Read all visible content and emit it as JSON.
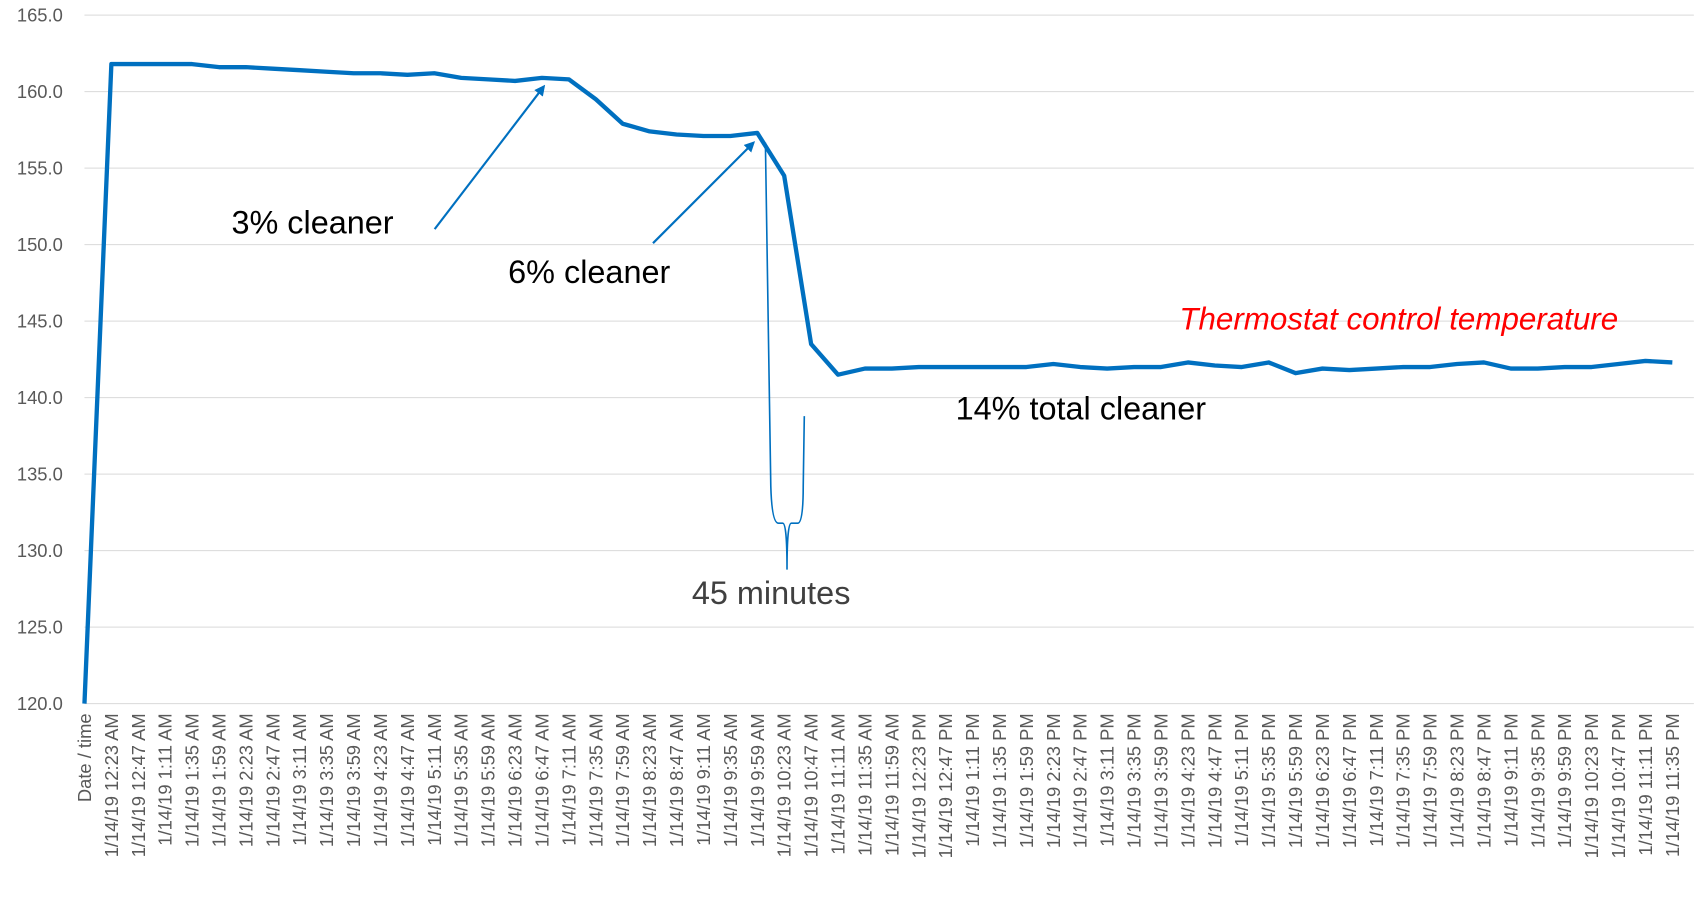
{
  "chart_data": {
    "type": "line",
    "categories": [
      "Date / time",
      "1/14/19 12:23 AM",
      "1/14/19 12:47 AM",
      "1/14/19 1:11 AM",
      "1/14/19 1:35 AM",
      "1/14/19 1:59 AM",
      "1/14/19 2:23 AM",
      "1/14/19 2:47 AM",
      "1/14/19 3:11 AM",
      "1/14/19 3:35 AM",
      "1/14/19 3:59 AM",
      "1/14/19 4:23 AM",
      "1/14/19 4:47 AM",
      "1/14/19 5:11 AM",
      "1/14/19 5:35 AM",
      "1/14/19 5:59 AM",
      "1/14/19 6:23 AM",
      "1/14/19 6:47 AM",
      "1/14/19 7:11 AM",
      "1/14/19 7:35 AM",
      "1/14/19 7:59 AM",
      "1/14/19 8:23 AM",
      "1/14/19 8:47 AM",
      "1/14/19 9:11 AM",
      "1/14/19 9:35 AM",
      "1/14/19 9:59 AM",
      "1/14/19 10:23 AM",
      "1/14/19 10:47 AM",
      "1/14/19 11:11 AM",
      "1/14/19 11:35 AM",
      "1/14/19 11:59 AM",
      "1/14/19 12:23 PM",
      "1/14/19 12:47 PM",
      "1/14/19 1:11 PM",
      "1/14/19 1:35 PM",
      "1/14/19 1:59 PM",
      "1/14/19 2:23 PM",
      "1/14/19 2:47 PM",
      "1/14/19 3:11 PM",
      "1/14/19 3:35 PM",
      "1/14/19 3:59 PM",
      "1/14/19 4:23 PM",
      "1/14/19 4:47 PM",
      "1/14/19 5:11 PM",
      "1/14/19 5:35 PM",
      "1/14/19 5:59 PM",
      "1/14/19 6:23 PM",
      "1/14/19 6:47 PM",
      "1/14/19 7:11 PM",
      "1/14/19 7:35 PM",
      "1/14/19 7:59 PM",
      "1/14/19 8:23 PM",
      "1/14/19 8:47 PM",
      "1/14/19 9:11 PM",
      "1/14/19 9:35 PM",
      "1/14/19 9:59 PM",
      "1/14/19 10:23 PM",
      "1/14/19 10:47 PM",
      "1/14/19 11:11 PM",
      "1/14/19 11:35 PM"
    ],
    "series": [
      {
        "color": "#0070c0",
        "values": [
          120,
          161.8,
          161.8,
          161.8,
          161.8,
          161.6,
          161.6,
          161.5,
          161.4,
          161.3,
          161.2,
          161.2,
          161.1,
          161.2,
          160.9,
          160.8,
          160.7,
          160.9,
          160.8,
          159.5,
          157.9,
          157.4,
          157.2,
          157.1,
          157.1,
          157.3,
          154.5,
          143.5,
          141.5,
          141.9,
          141.9,
          142,
          142,
          142,
          142,
          142,
          142.2,
          142,
          141.9,
          142,
          142,
          142.3,
          142.1,
          142,
          142.3,
          141.6,
          141.9,
          141.8,
          141.9,
          142,
          142,
          142.2,
          142.3,
          141.9,
          141.9,
          142,
          142,
          142.2,
          142.4,
          142.3
        ]
      }
    ],
    "ylim": [
      120,
      165
    ],
    "yticks": [
      {
        "value": 120,
        "label": "120.0"
      },
      {
        "value": 125,
        "label": "125.0"
      },
      {
        "value": 130,
        "label": "130.0"
      },
      {
        "value": 135,
        "label": "135.0"
      },
      {
        "value": 140,
        "label": "140.0"
      },
      {
        "value": 145,
        "label": "145.0"
      },
      {
        "value": 150,
        "label": "150.0"
      },
      {
        "value": 155,
        "label": "155.0"
      },
      {
        "value": 160,
        "label": "160.0"
      },
      {
        "value": 165,
        "label": "165.0"
      }
    ],
    "grid": true,
    "annotations": [
      "3% cleaner",
      "6% cleaner",
      "45 minutes",
      "14% total cleaner",
      "Thermostat control temperature"
    ]
  }
}
